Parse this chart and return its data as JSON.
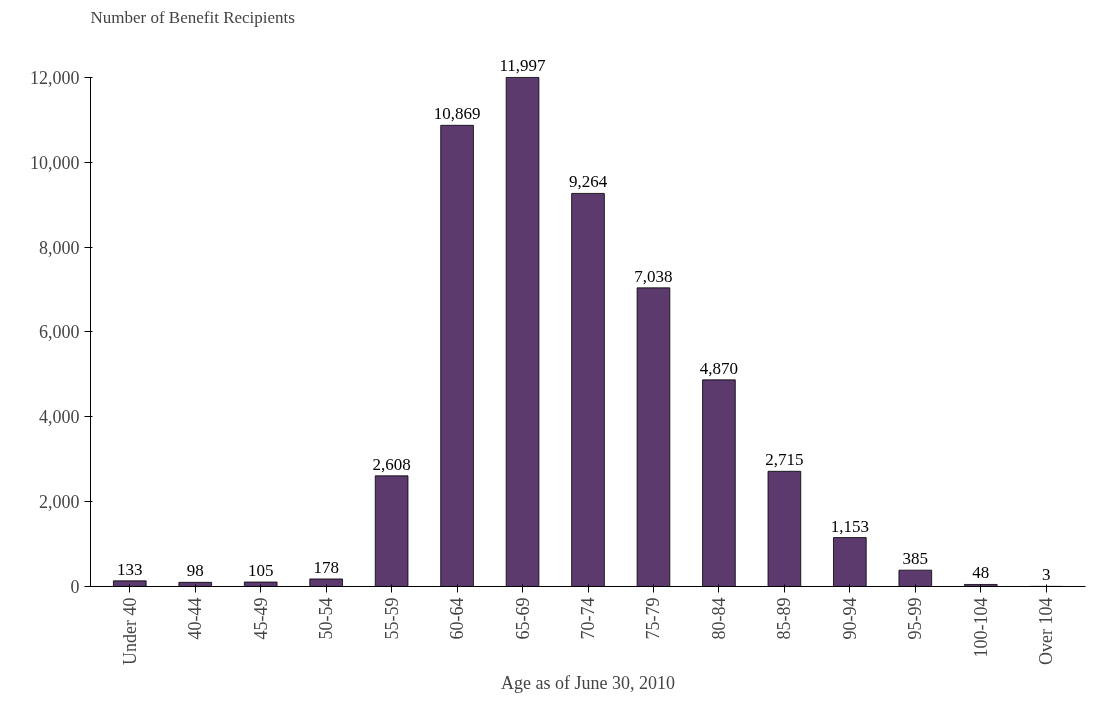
{
  "chart_data": {
    "type": "bar",
    "ylabel": "Number of Benefit Recipients",
    "xlabel": "Age as of June 30, 2010",
    "categories": [
      "Under 40",
      "40-44",
      "45-49",
      "50-54",
      "55-59",
      "60-64",
      "65-69",
      "70-74",
      "75-79",
      "80-84",
      "85-89",
      "90-94",
      "95-99",
      "100-104",
      "Over 104"
    ],
    "values": [
      133,
      98,
      105,
      178,
      2608,
      10869,
      11997,
      9264,
      7038,
      4870,
      2715,
      1153,
      385,
      48,
      3
    ],
    "value_labels": [
      "133",
      "98",
      "105",
      "178",
      "2,608",
      "10,869",
      "11,997",
      "9,264",
      "7,038",
      "4,870",
      "2,715",
      "1,153",
      "385",
      "48",
      "3"
    ],
    "color": "#5c3a6e",
    "ylim": [
      0,
      12000
    ],
    "yticks": [
      0,
      {
        "value": 2000,
        "label": "2,000"
      },
      {
        "value": 4000,
        "label": "4,000"
      },
      {
        "value": 6000,
        "label": "6,000"
      },
      {
        "value": 8000,
        "label": "8,000"
      },
      {
        "value": 10000,
        "label": "10,000"
      },
      {
        "value": 12000,
        "label": "12,000"
      }
    ]
  }
}
